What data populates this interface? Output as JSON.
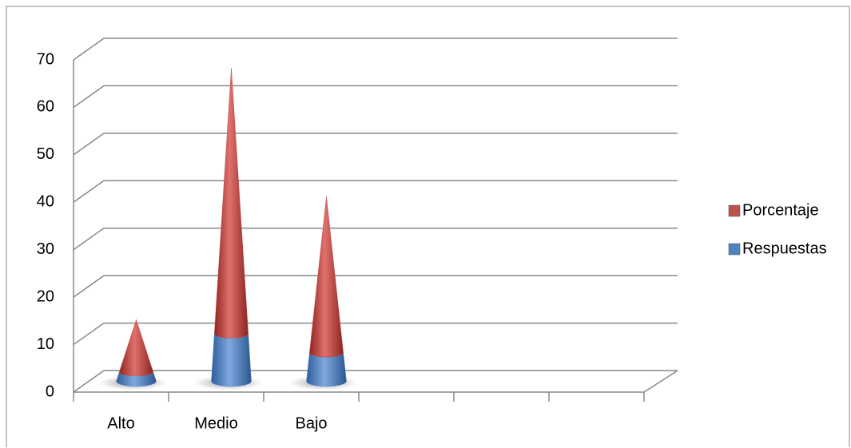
{
  "chart_data": {
    "type": "cone",
    "categories": [
      "Alto",
      "Medio",
      "Bajo",
      null,
      null,
      null
    ],
    "series": [
      {
        "name": "Respuestas",
        "color": "#4f81bd",
        "values": [
          2,
          10,
          6,
          null,
          null,
          null
        ]
      },
      {
        "name": "Porcentaje",
        "color": "#c0504d",
        "values": [
          11,
          56,
          33,
          null,
          null,
          null
        ]
      }
    ],
    "stacked": true,
    "ylim": [
      0,
      70
    ],
    "yticks": [
      0,
      10,
      20,
      30,
      40,
      50,
      60,
      70
    ],
    "grid": true,
    "legend": "right"
  }
}
